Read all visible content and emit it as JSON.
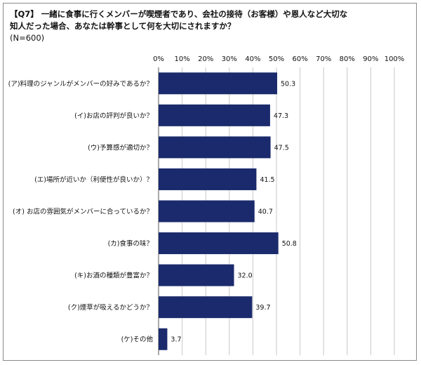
{
  "title": {
    "line1": "【Q7】 一緒に食事に行くメンバーが喫煙者であり、会社の接待（お客様）や恩人など大切な",
    "line2": "知人だった場合、あなたは幹事として何を大切にされますか？",
    "line3": "(N=600)"
  },
  "chart_data": {
    "type": "bar",
    "orientation": "horizontal",
    "categories": [
      "(ア)料理のジャンルがメンバーの好みであるか？",
      "(イ)お店の評判が良いか？",
      "(ウ)予算感が適切か？",
      "(エ)場所が近いか（利便性が良いか）？",
      "(オ) お店の雰囲気がメンバーに合っているか？",
      "(カ)食事の味？",
      "(キ)お酒の種類が豊富か？",
      "(ク)煙草が吸えるかどうか？",
      "(ケ)その他"
    ],
    "values": [
      50.3,
      47.3,
      47.5,
      41.5,
      40.7,
      50.8,
      32.0,
      39.7,
      3.7
    ],
    "value_labels": [
      "50.3",
      "47.3",
      "47.5",
      "41.5",
      "40.7",
      "50.8",
      "32.0",
      "39.7",
      "3.7"
    ],
    "xlim": [
      0,
      100
    ],
    "xticks": [
      "0%",
      "10%",
      "20%",
      "30%",
      "40%",
      "50%",
      "60%",
      "70%",
      "80%",
      "90%",
      "100%"
    ],
    "grid": true,
    "bar_color": "#1a2a6c",
    "grid_color": "#c8c8c8"
  }
}
